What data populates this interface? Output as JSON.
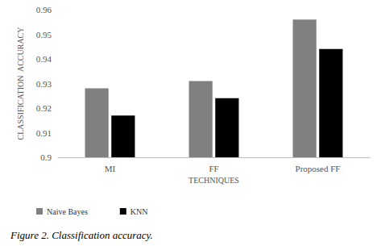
{
  "chart_data": {
    "type": "bar",
    "title": "Figure 2. Classification accuracy.",
    "x_label": "TECHNIQUES",
    "y_label": "CLASSIFICATION  ACCURACY",
    "categories": [
      "MI",
      "FF",
      "Proposed FF"
    ],
    "series": [
      {
        "name": "Naive Bayes",
        "color": "#808080",
        "values": [
          0.928,
          0.931,
          0.956
        ]
      },
      {
        "name": "KNN",
        "color": "#000000",
        "values": [
          0.917,
          0.924,
          0.944
        ]
      }
    ],
    "ylim": [
      0.9,
      0.96
    ],
    "yticks": [
      0.9,
      0.91,
      0.92,
      0.93,
      0.94,
      0.95,
      0.96
    ],
    "grid": false,
    "legend": "bottom"
  }
}
